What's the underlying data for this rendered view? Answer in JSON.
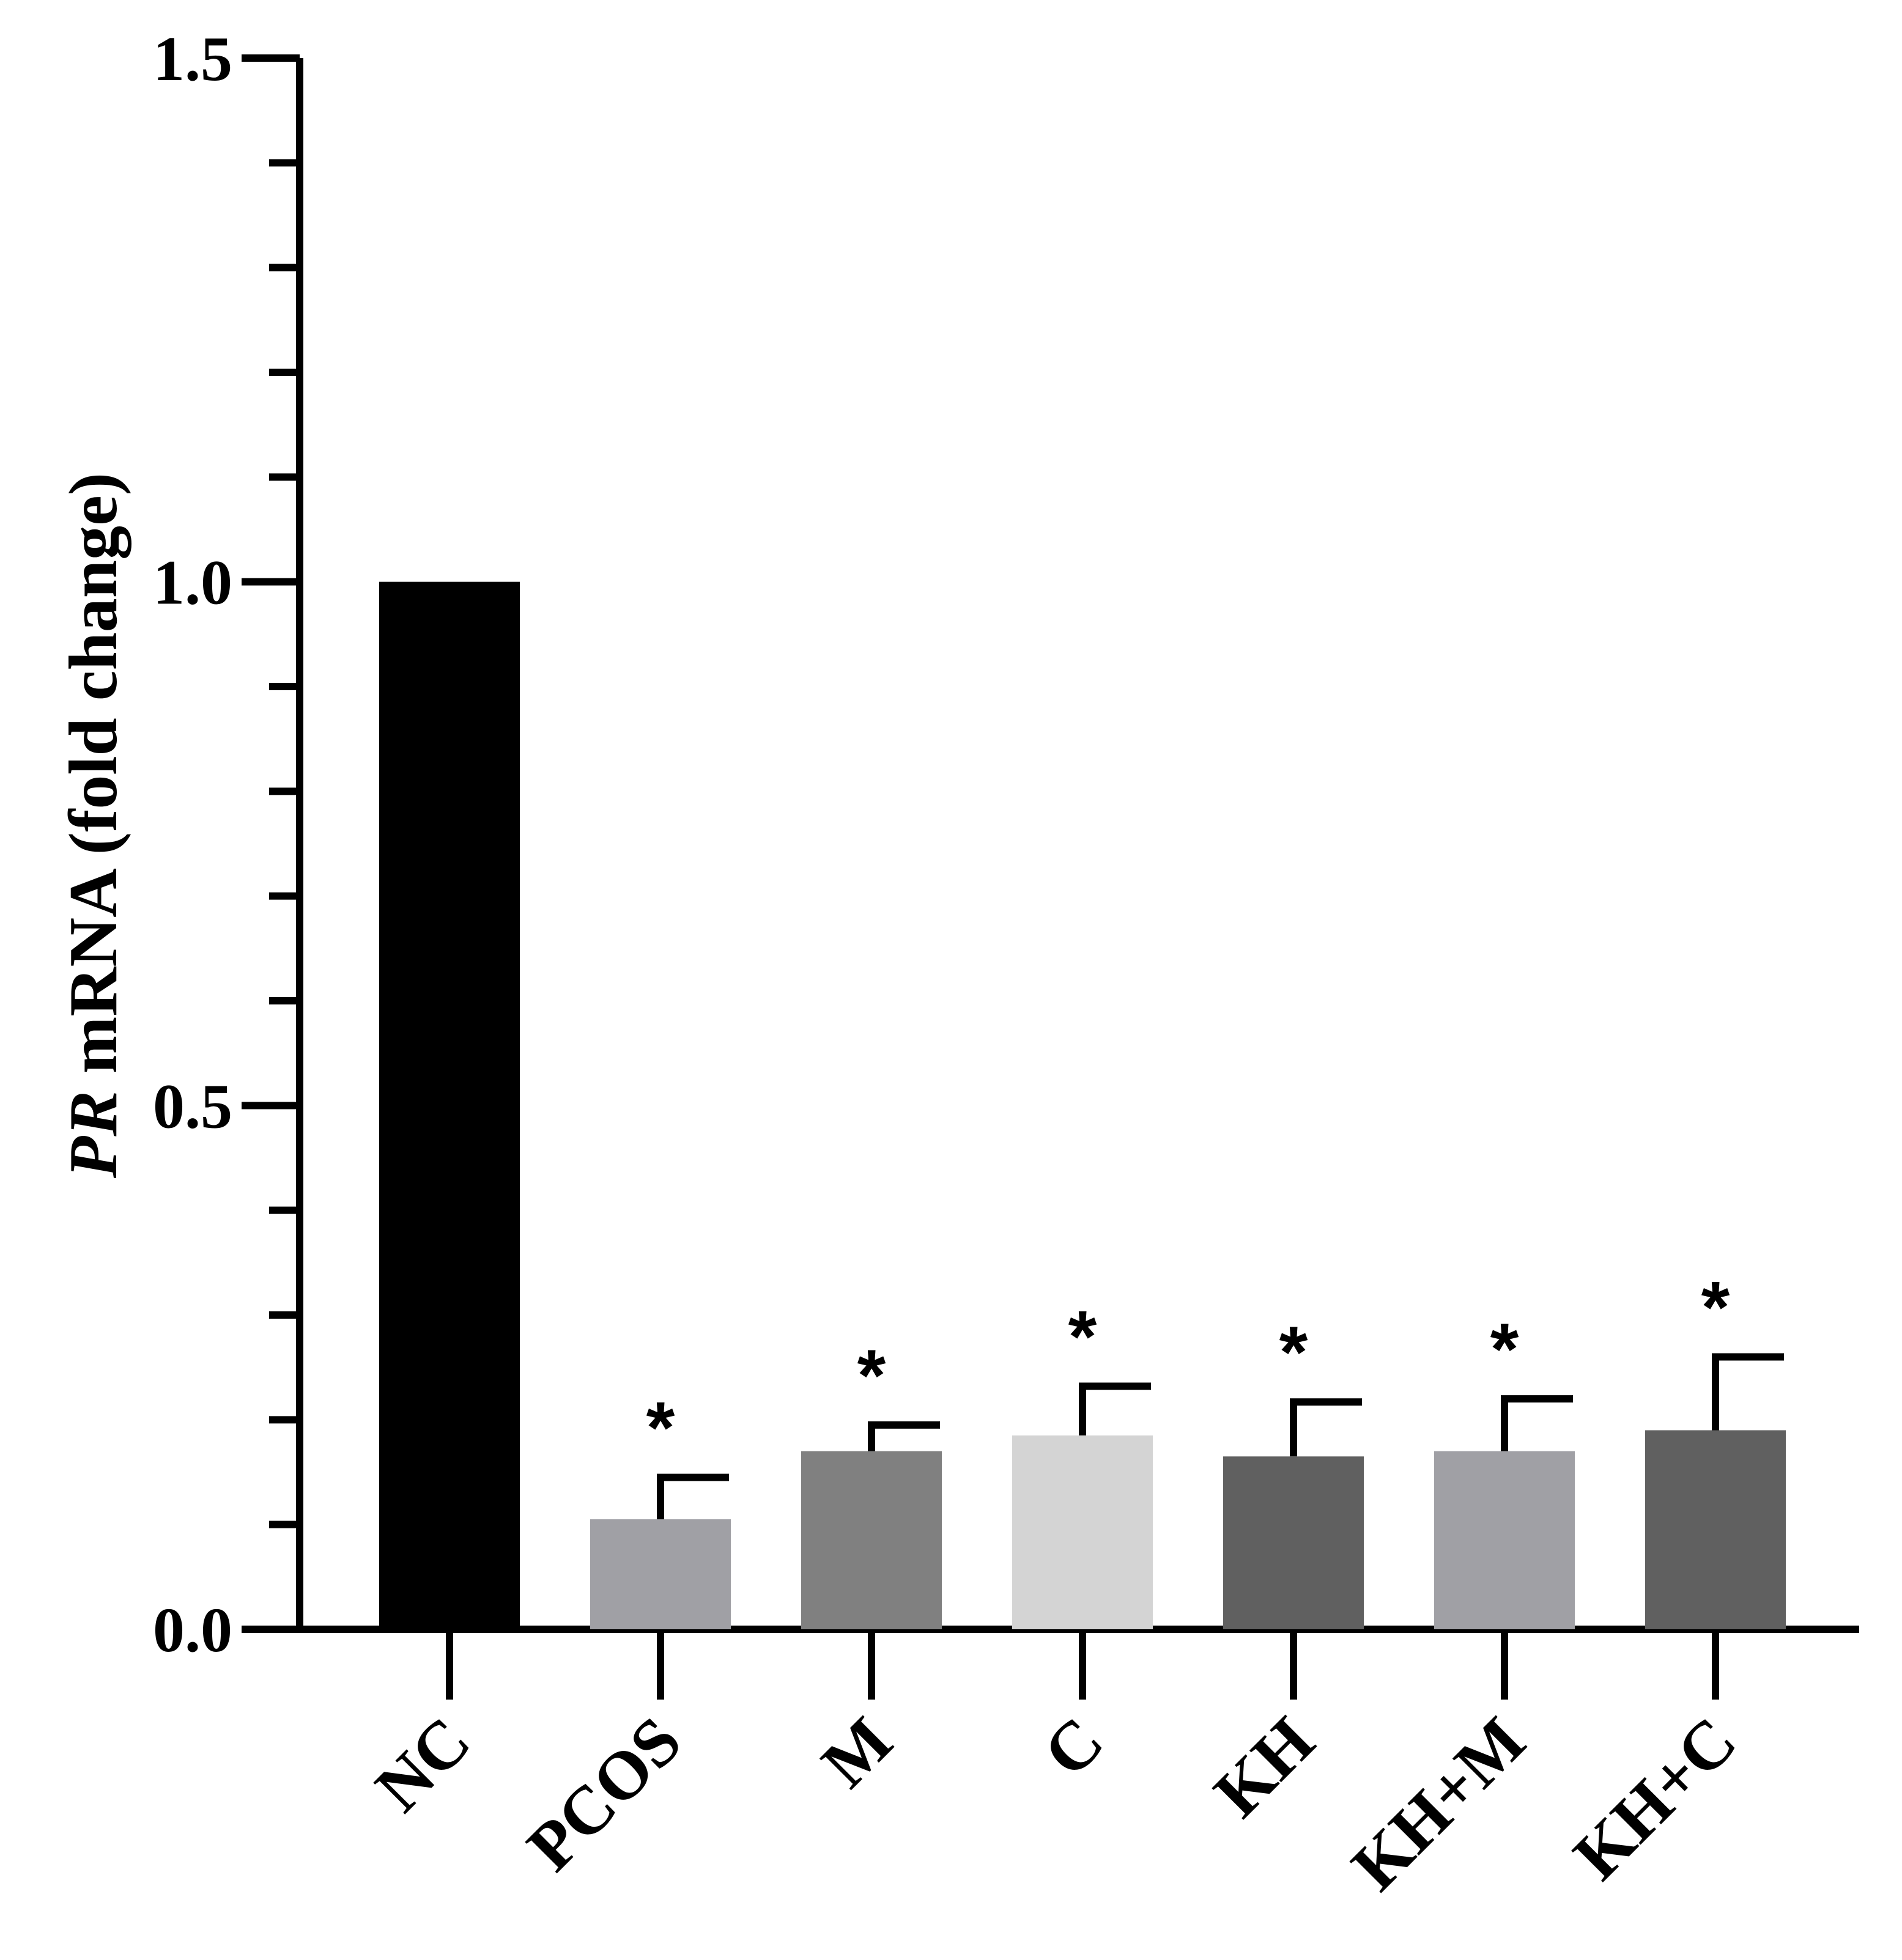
{
  "chart_data": {
    "type": "bar",
    "title": "",
    "xlabel": "",
    "ylabel": {
      "italic_part": "PR",
      "rest": " mRNA (fold change)"
    },
    "ylim": [
      0,
      1.5
    ],
    "y_ticks": [
      "0.0",
      "0.5",
      "1.0",
      "1.5"
    ],
    "grid": false,
    "legend": "none",
    "categories": [
      "NC",
      "PCOS",
      "M",
      "C",
      "KH",
      "KH+M",
      "KH+C"
    ],
    "values": [
      1.0,
      0.105,
      0.17,
      0.185,
      0.165,
      0.17,
      0.19
    ],
    "error_upper": [
      null,
      0.04,
      0.025,
      0.047,
      0.052,
      0.05,
      0.07
    ],
    "significance": [
      "",
      "*",
      "*",
      "*",
      "*",
      "*",
      "*"
    ],
    "colors": [
      "#000000",
      "#a0a0a5",
      "#808080",
      "#d4d4d4",
      "#606060",
      "#a0a0a5",
      "#606060"
    ]
  }
}
